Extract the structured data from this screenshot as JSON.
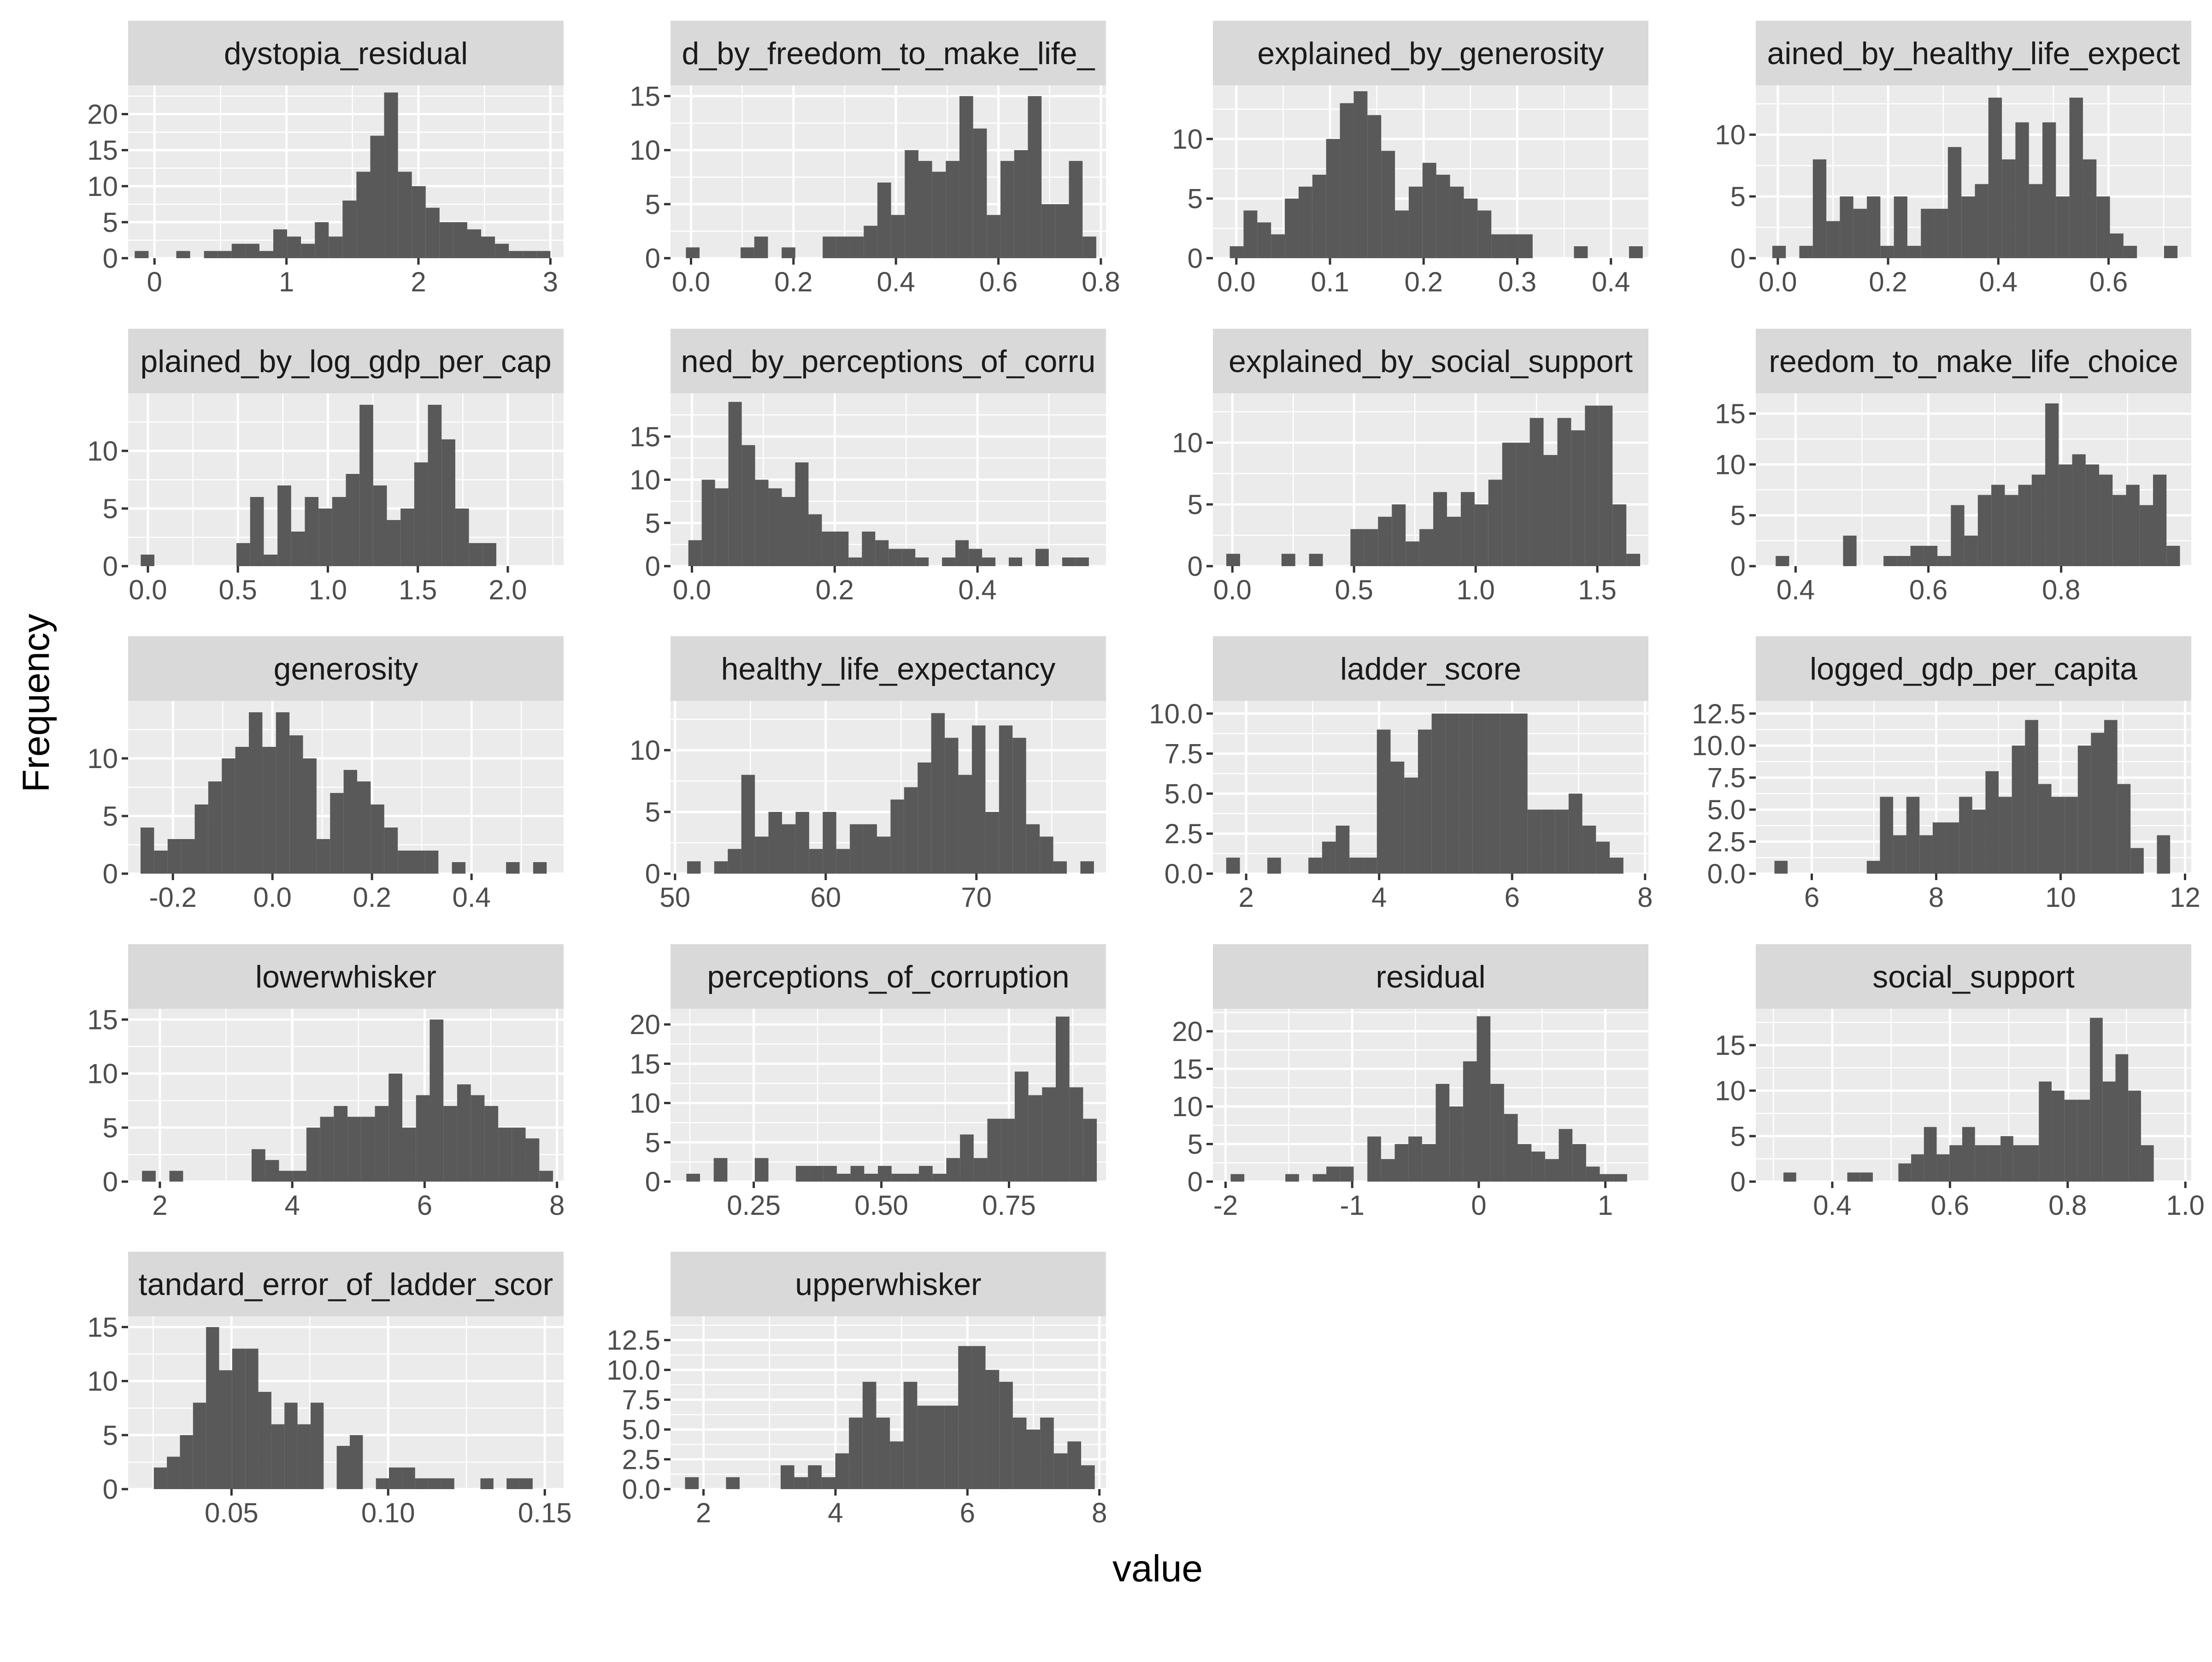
{
  "chart_data": {
    "type": "bar",
    "layout": "facet-wrap, 4 columns, free scales, 30 bins",
    "xlabel": "value",
    "ylabel": "Frequency",
    "panels": [
      {
        "title": "dystopia_residual",
        "xlim": [
          -0.2,
          3.1
        ],
        "ylim": [
          0,
          24
        ],
        "xticks": [
          0,
          1,
          2,
          3
        ],
        "xtick_labels": [
          "0",
          "1",
          "2",
          "3"
        ],
        "yticks": [
          0,
          5,
          10,
          15,
          20
        ],
        "ytick_labels": [
          "0",
          "5",
          "10",
          "15",
          "20"
        ],
        "bin_start": -0.15,
        "bin_width": 0.105,
        "counts": [
          1,
          0,
          0,
          1,
          0,
          1,
          1,
          2,
          2,
          1,
          4,
          3,
          2,
          5,
          3,
          8,
          12,
          17,
          23,
          12,
          10,
          7,
          5,
          5,
          4,
          3,
          2,
          1,
          1,
          1
        ]
      },
      {
        "title": "d_by_freedom_to_make_life_",
        "xlim": [
          -0.04,
          0.81
        ],
        "ylim": [
          0,
          16
        ],
        "xticks": [
          0,
          0.2,
          0.4,
          0.6,
          0.8
        ],
        "xtick_labels": [
          "0.0",
          "0.2",
          "0.4",
          "0.6",
          "0.8"
        ],
        "yticks": [
          0,
          5,
          10,
          15
        ],
        "ytick_labels": [
          "0",
          "5",
          "10",
          "15"
        ],
        "bin_start": -0.01,
        "bin_width": 0.0267,
        "counts": [
          1,
          0,
          0,
          0,
          1,
          2,
          0,
          1,
          0,
          0,
          2,
          2,
          2,
          3,
          7,
          4,
          10,
          9,
          8,
          9,
          15,
          12,
          4,
          9,
          10,
          15,
          5,
          5,
          9,
          2
        ]
      },
      {
        "title": "explained_by_generosity",
        "xlim": [
          -0.025,
          0.44
        ],
        "ylim": [
          0,
          14.5
        ],
        "xticks": [
          0,
          0.1,
          0.2,
          0.3,
          0.4
        ],
        "xtick_labels": [
          "0.0",
          "0.1",
          "0.2",
          "0.3",
          "0.4"
        ],
        "yticks": [
          0,
          5,
          10
        ],
        "ytick_labels": [
          "0",
          "5",
          "10"
        ],
        "bin_start": -0.007,
        "bin_width": 0.0147,
        "counts": [
          1,
          4,
          3,
          2,
          5,
          6,
          7,
          10,
          13,
          14,
          12,
          9,
          4,
          6,
          8,
          7,
          6,
          5,
          4,
          2,
          2,
          2,
          0,
          0,
          0,
          1,
          0,
          0,
          0,
          1
        ]
      },
      {
        "title": "ained_by_healthy_life_expect",
        "xlim": [
          -0.04,
          0.75
        ],
        "ylim": [
          0,
          14
        ],
        "xticks": [
          0,
          0.2,
          0.4,
          0.6
        ],
        "xtick_labels": [
          "0.0",
          "0.2",
          "0.4",
          "0.6"
        ],
        "yticks": [
          0,
          5,
          10
        ],
        "ytick_labels": [
          "0",
          "5",
          "10"
        ],
        "bin_start": -0.01,
        "bin_width": 0.0245,
        "counts": [
          1,
          0,
          1,
          8,
          3,
          5,
          4,
          5,
          1,
          5,
          1,
          4,
          4,
          9,
          5,
          6,
          13,
          8,
          11,
          6,
          11,
          5,
          13,
          8,
          5,
          2,
          1,
          0,
          0,
          1
        ]
      },
      {
        "title": "plained_by_log_gdp_per_cap",
        "xlim": [
          -0.11,
          2.31
        ],
        "ylim": [
          0,
          15
        ],
        "xticks": [
          0,
          0.5,
          1,
          1.5,
          2
        ],
        "xtick_labels": [
          "0.0",
          "0.5",
          "1.0",
          "1.5",
          "2.0"
        ],
        "yticks": [
          0,
          5,
          10
        ],
        "ytick_labels": [
          "0",
          "5",
          "10"
        ],
        "bin_start": -0.04,
        "bin_width": 0.076,
        "counts": [
          1,
          0,
          0,
          0,
          0,
          0,
          0,
          2,
          6,
          1,
          7,
          3,
          6,
          5,
          6,
          8,
          14,
          7,
          4,
          5,
          9,
          14,
          11,
          5,
          2,
          2,
          0,
          0,
          0,
          0
        ]
      },
      {
        "title": "ned_by_perceptions_of_corru",
        "xlim": [
          -0.03,
          0.58
        ],
        "ylim": [
          0,
          20
        ],
        "xticks": [
          0,
          0.2,
          0.4
        ],
        "xtick_labels": [
          "0.0",
          "0.2",
          "0.4"
        ],
        "yticks": [
          0,
          5,
          10,
          15
        ],
        "ytick_labels": [
          "0",
          "5",
          "10",
          "15"
        ],
        "bin_start": -0.005,
        "bin_width": 0.0187,
        "counts": [
          3,
          10,
          9,
          19,
          14,
          10,
          9,
          8,
          12,
          6,
          4,
          4,
          1,
          4,
          3,
          2,
          2,
          1,
          0,
          1,
          3,
          2,
          1,
          0,
          1,
          0,
          2,
          0,
          1,
          1
        ]
      },
      {
        "title": "explained_by_social_support",
        "xlim": [
          -0.08,
          1.71
        ],
        "ylim": [
          0,
          14
        ],
        "xticks": [
          0,
          0.5,
          1,
          1.5
        ],
        "xtick_labels": [
          "0.0",
          "0.5",
          "1.0",
          "1.5"
        ],
        "yticks": [
          0,
          5,
          10
        ],
        "ytick_labels": [
          "0",
          "5",
          "10"
        ],
        "bin_start": -0.025,
        "bin_width": 0.0567,
        "counts": [
          1,
          0,
          0,
          0,
          1,
          0,
          1,
          0,
          0,
          3,
          3,
          4,
          5,
          2,
          3,
          6,
          4,
          6,
          5,
          7,
          10,
          10,
          12,
          9,
          12,
          11,
          13,
          13,
          5,
          1
        ]
      },
      {
        "title": "reedom_to_make_life_choice",
        "xlim": [
          0.34,
          0.996
        ],
        "ylim": [
          0,
          17
        ],
        "xticks": [
          0.4,
          0.6,
          0.8
        ],
        "xtick_labels": [
          "0.4",
          "0.6",
          "0.8"
        ],
        "yticks": [
          0,
          5,
          10,
          15
        ],
        "ytick_labels": [
          "0",
          "5",
          "10",
          "15"
        ],
        "bin_start": 0.37,
        "bin_width": 0.0203,
        "counts": [
          1,
          0,
          0,
          0,
          0,
          3,
          0,
          0,
          1,
          1,
          2,
          2,
          1,
          6,
          3,
          7,
          8,
          7,
          8,
          9,
          16,
          10,
          11,
          10,
          9,
          7,
          8,
          6,
          9,
          2
        ]
      },
      {
        "title": "generosity",
        "xlim": [
          -0.29,
          0.585
        ],
        "ylim": [
          0,
          15
        ],
        "xticks": [
          -0.2,
          0,
          0.2,
          0.4
        ],
        "xtick_labels": [
          "-0.2",
          "0.0",
          "0.2",
          "0.4"
        ],
        "yticks": [
          0,
          5,
          10
        ],
        "ytick_labels": [
          "0",
          "5",
          "10"
        ],
        "bin_start": -0.265,
        "bin_width": 0.0272,
        "counts": [
          4,
          2,
          3,
          3,
          6,
          8,
          10,
          11,
          14,
          11,
          14,
          12,
          10,
          3,
          7,
          9,
          8,
          6,
          4,
          2,
          2,
          2,
          0,
          1,
          0,
          0,
          0,
          1,
          0,
          1
        ]
      },
      {
        "title": "healthy_life_expectancy",
        "xlim": [
          49.7,
          78.6
        ],
        "ylim": [
          0,
          14
        ],
        "xticks": [
          50,
          60,
          70
        ],
        "xtick_labels": [
          "50",
          "60",
          "70"
        ],
        "yticks": [
          0,
          5,
          10
        ],
        "ytick_labels": [
          "0",
          "5",
          "10"
        ],
        "bin_start": 50.8,
        "bin_width": 0.9,
        "counts": [
          1,
          0,
          1,
          2,
          8,
          3,
          5,
          4,
          5,
          2,
          5,
          2,
          4,
          4,
          3,
          6,
          7,
          9,
          13,
          11,
          8,
          12,
          5,
          12,
          11,
          4,
          3,
          1,
          0,
          1
        ]
      },
      {
        "title": "ladder_score",
        "xlim": [
          1.5,
          8.05
        ],
        "ylim": [
          0,
          10.8
        ],
        "xticks": [
          2,
          4,
          6,
          8
        ],
        "xtick_labels": [
          "2",
          "4",
          "6",
          "8"
        ],
        "yticks": [
          0,
          2.5,
          5,
          7.5,
          10
        ],
        "ytick_labels": [
          "0.0",
          "2.5",
          "5.0",
          "7.5",
          "10.0"
        ],
        "bin_start": 1.7,
        "bin_width": 0.206,
        "counts": [
          1,
          0,
          0,
          1,
          0,
          0,
          1,
          2,
          3,
          1,
          1,
          9,
          7,
          6,
          9,
          10,
          10,
          10,
          10,
          10,
          10,
          10,
          4,
          4,
          4,
          5,
          3,
          2,
          1,
          0
        ]
      },
      {
        "title": "logged_gdp_per_capita",
        "xlim": [
          5.1,
          12.1
        ],
        "ylim": [
          0,
          13.5
        ],
        "xticks": [
          6,
          8,
          10,
          12
        ],
        "xtick_labels": [
          "6",
          "8",
          "10",
          "12"
        ],
        "yticks": [
          0,
          2.5,
          5,
          7.5,
          10,
          12.5
        ],
        "ytick_labels": [
          "0.0",
          "2.5",
          "5.0",
          "7.5",
          "10.0",
          "12.5"
        ],
        "bin_start": 5.4,
        "bin_width": 0.212,
        "counts": [
          1,
          0,
          0,
          0,
          0,
          0,
          0,
          1,
          6,
          3,
          6,
          3,
          4,
          4,
          6,
          5,
          8,
          6,
          10,
          12,
          7,
          6,
          6,
          10,
          11,
          12,
          7,
          2,
          0,
          3
        ]
      },
      {
        "title": "lowerwhisker",
        "xlim": [
          1.52,
          8.1
        ],
        "ylim": [
          0,
          16
        ],
        "xticks": [
          2,
          4,
          6,
          8
        ],
        "xtick_labels": [
          "2",
          "4",
          "6",
          "8"
        ],
        "yticks": [
          0,
          5,
          10,
          15
        ],
        "ytick_labels": [
          "0",
          "5",
          "10",
          "15"
        ],
        "bin_start": 1.73,
        "bin_width": 0.207,
        "counts": [
          1,
          0,
          1,
          0,
          0,
          0,
          0,
          0,
          3,
          2,
          1,
          1,
          5,
          6,
          7,
          6,
          6,
          7,
          10,
          5,
          8,
          15,
          7,
          9,
          8,
          7,
          5,
          5,
          4,
          1
        ]
      },
      {
        "title": "perceptions_of_corruption",
        "xlim": [
          0.087,
          0.94
        ],
        "ylim": [
          0,
          22
        ],
        "xticks": [
          0.25,
          0.5,
          0.75
        ],
        "xtick_labels": [
          "0.25",
          "0.50",
          "0.75"
        ],
        "yticks": [
          0,
          5,
          10,
          15,
          20
        ],
        "ytick_labels": [
          "0",
          "5",
          "10",
          "15",
          "20"
        ],
        "bin_start": 0.118,
        "bin_width": 0.0268,
        "counts": [
          1,
          0,
          3,
          0,
          0,
          3,
          0,
          0,
          2,
          2,
          2,
          1,
          2,
          1,
          2,
          1,
          1,
          2,
          1,
          3,
          6,
          3,
          8,
          8,
          14,
          11,
          12,
          21,
          12,
          8
        ]
      },
      {
        "title": "residual",
        "xlim": [
          -2.1,
          1.34
        ],
        "ylim": [
          0,
          23
        ],
        "xticks": [
          -2,
          -1,
          0,
          1
        ],
        "xtick_labels": [
          "-2",
          "-1",
          "0",
          "1"
        ],
        "yticks": [
          0,
          5,
          10,
          15,
          20
        ],
        "ytick_labels": [
          "0",
          "5",
          "10",
          "15",
          "20"
        ],
        "bin_start": -1.96,
        "bin_width": 0.108,
        "counts": [
          1,
          0,
          0,
          0,
          1,
          0,
          1,
          2,
          2,
          0,
          6,
          3,
          5,
          6,
          5,
          13,
          10,
          16,
          22,
          13,
          9,
          5,
          4,
          3,
          7,
          5,
          2,
          1,
          1,
          0
        ]
      },
      {
        "title": "social_support",
        "xlim": [
          0.27,
          1.01
        ],
        "ylim": [
          0,
          19
        ],
        "xticks": [
          0.4,
          0.6,
          0.8,
          1
        ],
        "xtick_labels": [
          "0.4",
          "0.6",
          "0.8",
          "1.0"
        ],
        "yticks": [
          0,
          5,
          10,
          15
        ],
        "ytick_labels": [
          "0",
          "5",
          "10",
          "15"
        ],
        "bin_start": 0.317,
        "bin_width": 0.0217,
        "counts": [
          1,
          0,
          0,
          0,
          0,
          1,
          1,
          0,
          0,
          2,
          3,
          6,
          3,
          4,
          6,
          4,
          4,
          5,
          4,
          4,
          11,
          10,
          9,
          9,
          18,
          11,
          14,
          10,
          4,
          0
        ]
      },
      {
        "title": "tandard_error_of_ladder_scor",
        "xlim": [
          0.017,
          0.156
        ],
        "ylim": [
          0,
          16
        ],
        "xticks": [
          0.05,
          0.1,
          0.15
        ],
        "xtick_labels": [
          "0.05",
          "0.10",
          "0.15"
        ],
        "yticks": [
          0,
          5,
          10,
          15
        ],
        "ytick_labels": [
          "0",
          "5",
          "10",
          "15"
        ],
        "bin_start": 0.0252,
        "bin_width": 0.00417,
        "counts": [
          2,
          3,
          5,
          8,
          15,
          11,
          13,
          13,
          9,
          6,
          8,
          6,
          8,
          0,
          4,
          5,
          0,
          1,
          2,
          2,
          1,
          1,
          1,
          0,
          0,
          1,
          0,
          1,
          1,
          0
        ]
      },
      {
        "title": "upperwhisker",
        "xlim": [
          1.5,
          8.1
        ],
        "ylim": [
          0,
          14.5
        ],
        "xticks": [
          2,
          4,
          6,
          8
        ],
        "xtick_labels": [
          "2",
          "4",
          "6",
          "8"
        ],
        "yticks": [
          0,
          2.5,
          5,
          7.5,
          10,
          12.5
        ],
        "ytick_labels": [
          "0.0",
          "2.5",
          "5.0",
          "7.5",
          "10.0",
          "12.5"
        ],
        "bin_start": 1.72,
        "bin_width": 0.207,
        "counts": [
          1,
          0,
          0,
          1,
          0,
          0,
          0,
          2,
          1,
          2,
          1,
          3,
          6,
          9,
          6,
          4,
          9,
          7,
          7,
          7,
          12,
          12,
          10,
          9,
          6,
          5,
          6,
          3,
          4,
          2
        ]
      }
    ]
  }
}
